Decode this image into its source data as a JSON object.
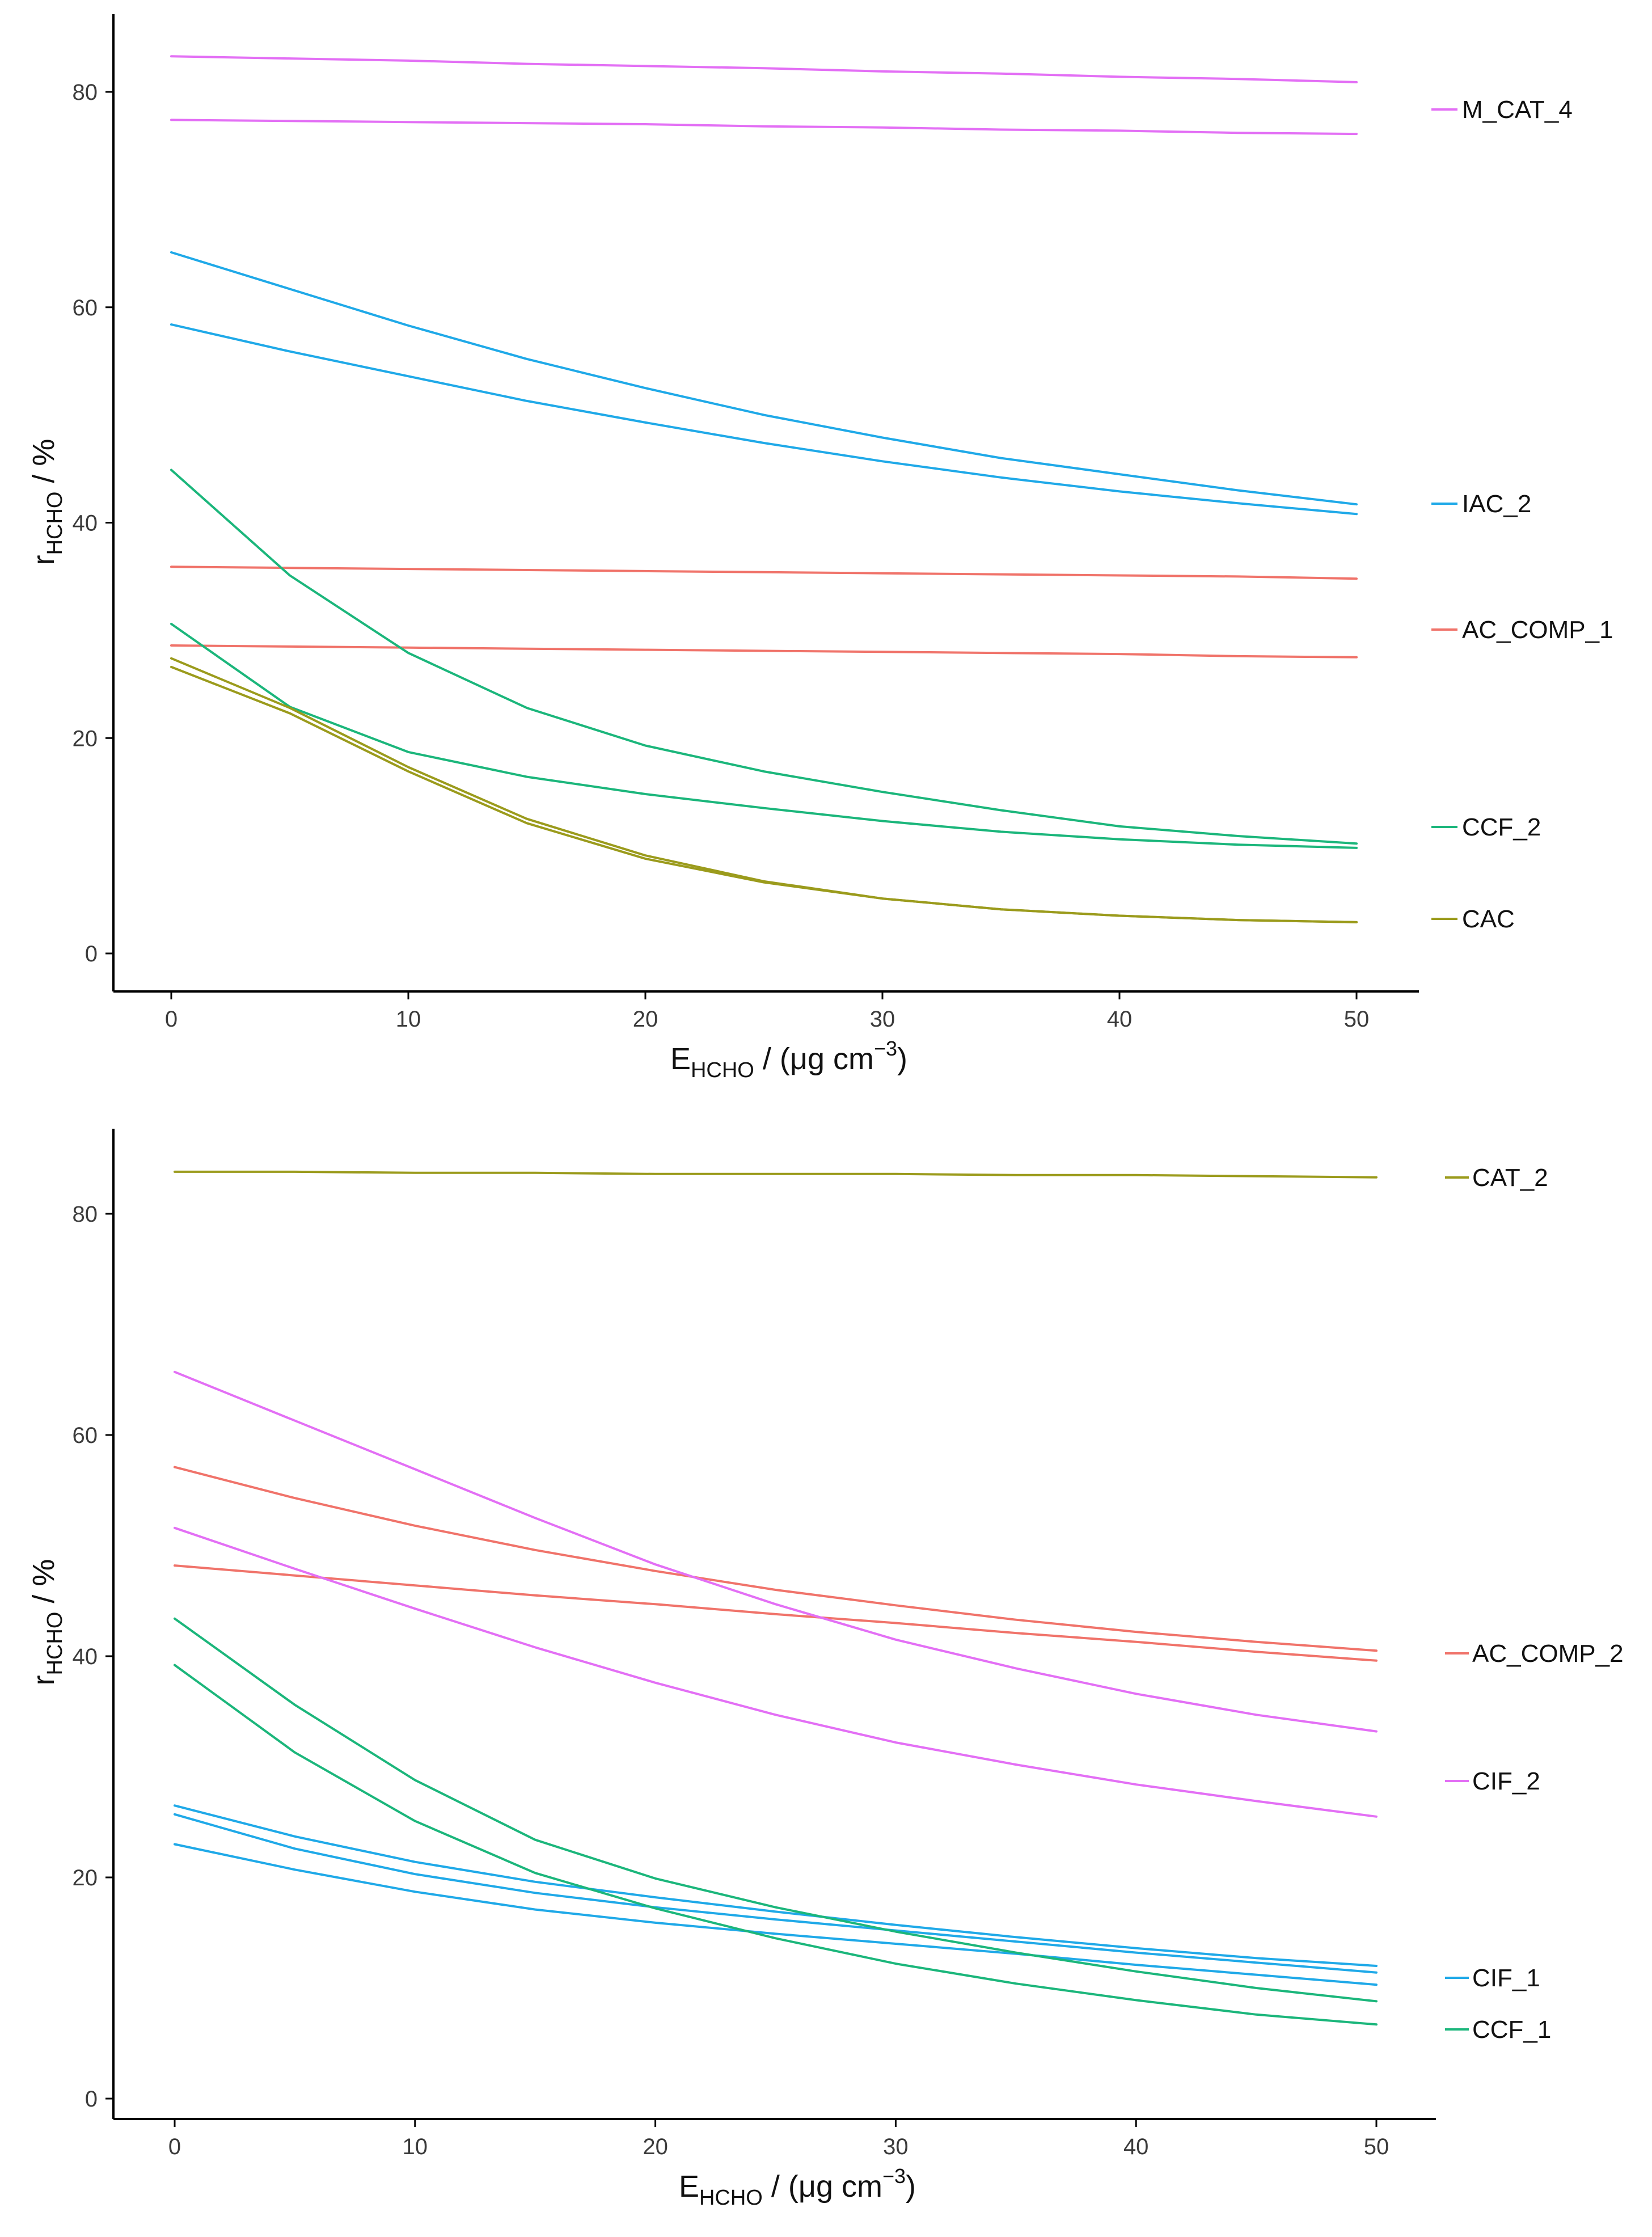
{
  "chart_data": [
    {
      "type": "line",
      "title": "",
      "xlabel": {
        "main": "E",
        "sub": "HCHO",
        "rest": " / (μg cm",
        "sup": "−3",
        "close": ")"
      },
      "ylabel": {
        "main": "r",
        "sub": "HCHO",
        "rest": " / %"
      },
      "xlim": [
        0,
        50
      ],
      "ylim": [
        0,
        85
      ],
      "xticks": [
        "0",
        "10",
        "20",
        "30",
        "40",
        "50"
      ],
      "yticks": [
        "0",
        "20",
        "40",
        "60",
        "80"
      ],
      "grid": false,
      "legend_placement": "right, at line ends",
      "x": [
        0,
        5,
        10,
        15,
        20,
        25,
        30,
        35,
        40,
        45,
        50
      ],
      "series": [
        {
          "name": "M_CAT_4",
          "color": "#E36FF5",
          "values": [
            83.3,
            83.1,
            82.9,
            82.6,
            82.4,
            82.2,
            81.9,
            81.7,
            81.4,
            81.2,
            80.9
          ]
        },
        {
          "name": "",
          "color": "#E36FF5",
          "values": [
            77.4,
            77.3,
            77.2,
            77.1,
            77.0,
            76.8,
            76.7,
            76.5,
            76.4,
            76.2,
            76.1
          ]
        },
        {
          "name": "IAC_2",
          "color": "#1FA9E8",
          "values": [
            65.1,
            61.7,
            58.3,
            55.2,
            52.5,
            50.0,
            47.9,
            46.0,
            44.5,
            43.0,
            41.7
          ]
        },
        {
          "name": "",
          "color": "#1FA9E8",
          "values": [
            58.4,
            55.9,
            53.6,
            51.3,
            49.3,
            47.4,
            45.7,
            44.2,
            42.9,
            41.8,
            40.8
          ]
        },
        {
          "name": "AC_COMP_1",
          "color": "#F0736A",
          "values": [
            35.9,
            35.8,
            35.7,
            35.6,
            35.5,
            35.4,
            35.3,
            35.2,
            35.1,
            35.0,
            34.8
          ]
        },
        {
          "name": "",
          "color": "#F0736A",
          "values": [
            28.6,
            28.5,
            28.4,
            28.3,
            28.2,
            28.1,
            28.0,
            27.9,
            27.8,
            27.6,
            27.5
          ]
        },
        {
          "name": "CCF_2",
          "color": "#1BB67B",
          "values": [
            44.9,
            35.1,
            27.9,
            22.8,
            19.3,
            16.9,
            15.0,
            13.3,
            11.8,
            10.9,
            10.2
          ]
        },
        {
          "name": "",
          "color": "#1BB67B",
          "values": [
            30.6,
            22.9,
            18.7,
            16.4,
            14.8,
            13.5,
            12.3,
            11.3,
            10.6,
            10.1,
            9.8
          ]
        },
        {
          "name": "CAC",
          "color": "#9B9B1C",
          "values": [
            27.4,
            22.8,
            17.3,
            12.5,
            9.1,
            6.7,
            5.1,
            4.1,
            3.5,
            3.1,
            2.9
          ]
        },
        {
          "name": "",
          "color": "#9B9B1C",
          "values": [
            26.6,
            22.3,
            16.9,
            12.1,
            8.8,
            6.6,
            5.1,
            4.1,
            3.5,
            3.1,
            2.9
          ]
        }
      ]
    },
    {
      "type": "line",
      "title": "",
      "xlabel": {
        "main": "E",
        "sub": "HCHO",
        "rest": " / (μg cm",
        "sup": "−3",
        "close": ")"
      },
      "ylabel": {
        "main": "r",
        "sub": "HCHO",
        "rest": " / %"
      },
      "xlim": [
        0,
        50
      ],
      "ylim": [
        0,
        85
      ],
      "xticks": [
        "0",
        "10",
        "20",
        "30",
        "40",
        "50"
      ],
      "yticks": [
        "0",
        "20",
        "40",
        "60",
        "80"
      ],
      "grid": false,
      "legend_placement": "right, at line ends",
      "x": [
        0,
        5,
        10,
        15,
        20,
        25,
        30,
        35,
        40,
        45,
        50
      ],
      "series": [
        {
          "name": "CAT_2",
          "color": "#9B9B1C",
          "values": [
            83.8,
            83.8,
            83.7,
            83.7,
            83.6,
            83.6,
            83.6,
            83.5,
            83.5,
            83.4,
            83.3
          ]
        },
        {
          "name": "AC_COMP_2",
          "color": "#F0736A",
          "values": [
            57.1,
            54.3,
            51.8,
            49.6,
            47.7,
            46.0,
            44.6,
            43.3,
            42.2,
            41.3,
            40.5
          ]
        },
        {
          "name": "",
          "color": "#F0736A",
          "values": [
            48.2,
            47.3,
            46.4,
            45.5,
            44.7,
            43.8,
            43.0,
            42.1,
            41.3,
            40.4,
            39.6
          ]
        },
        {
          "name": "CIF_2",
          "color": "#E36FF5",
          "values": [
            65.7,
            61.3,
            56.9,
            52.5,
            48.3,
            44.7,
            41.5,
            38.9,
            36.6,
            34.7,
            33.2
          ]
        },
        {
          "name": "",
          "color": "#E36FF5",
          "values": [
            51.6,
            47.9,
            44.3,
            40.8,
            37.6,
            34.7,
            32.2,
            30.2,
            28.4,
            26.9,
            25.5
          ]
        },
        {
          "name": "CIF_1",
          "color": "#1FA9E8",
          "values": [
            26.5,
            23.7,
            21.4,
            19.6,
            18.2,
            16.9,
            15.7,
            14.6,
            13.6,
            12.7,
            12.0
          ]
        },
        {
          "name": "",
          "color": "#1FA9E8",
          "values": [
            25.7,
            22.6,
            20.3,
            18.6,
            17.3,
            16.2,
            15.2,
            14.2,
            13.2,
            12.3,
            11.4
          ]
        },
        {
          "name": "",
          "color": "#1FA9E8",
          "values": [
            23.0,
            20.7,
            18.7,
            17.1,
            15.9,
            14.9,
            14.0,
            13.1,
            12.1,
            11.2,
            10.3
          ]
        },
        {
          "name": "CCF_1",
          "color": "#1BB67B",
          "values": [
            43.4,
            35.6,
            28.8,
            23.4,
            19.9,
            17.3,
            15.1,
            13.2,
            11.5,
            10.0,
            8.8
          ]
        },
        {
          "name": "",
          "color": "#1BB67B",
          "values": [
            39.2,
            31.3,
            25.1,
            20.4,
            17.2,
            14.5,
            12.2,
            10.4,
            8.9,
            7.6,
            6.7
          ]
        }
      ]
    }
  ]
}
